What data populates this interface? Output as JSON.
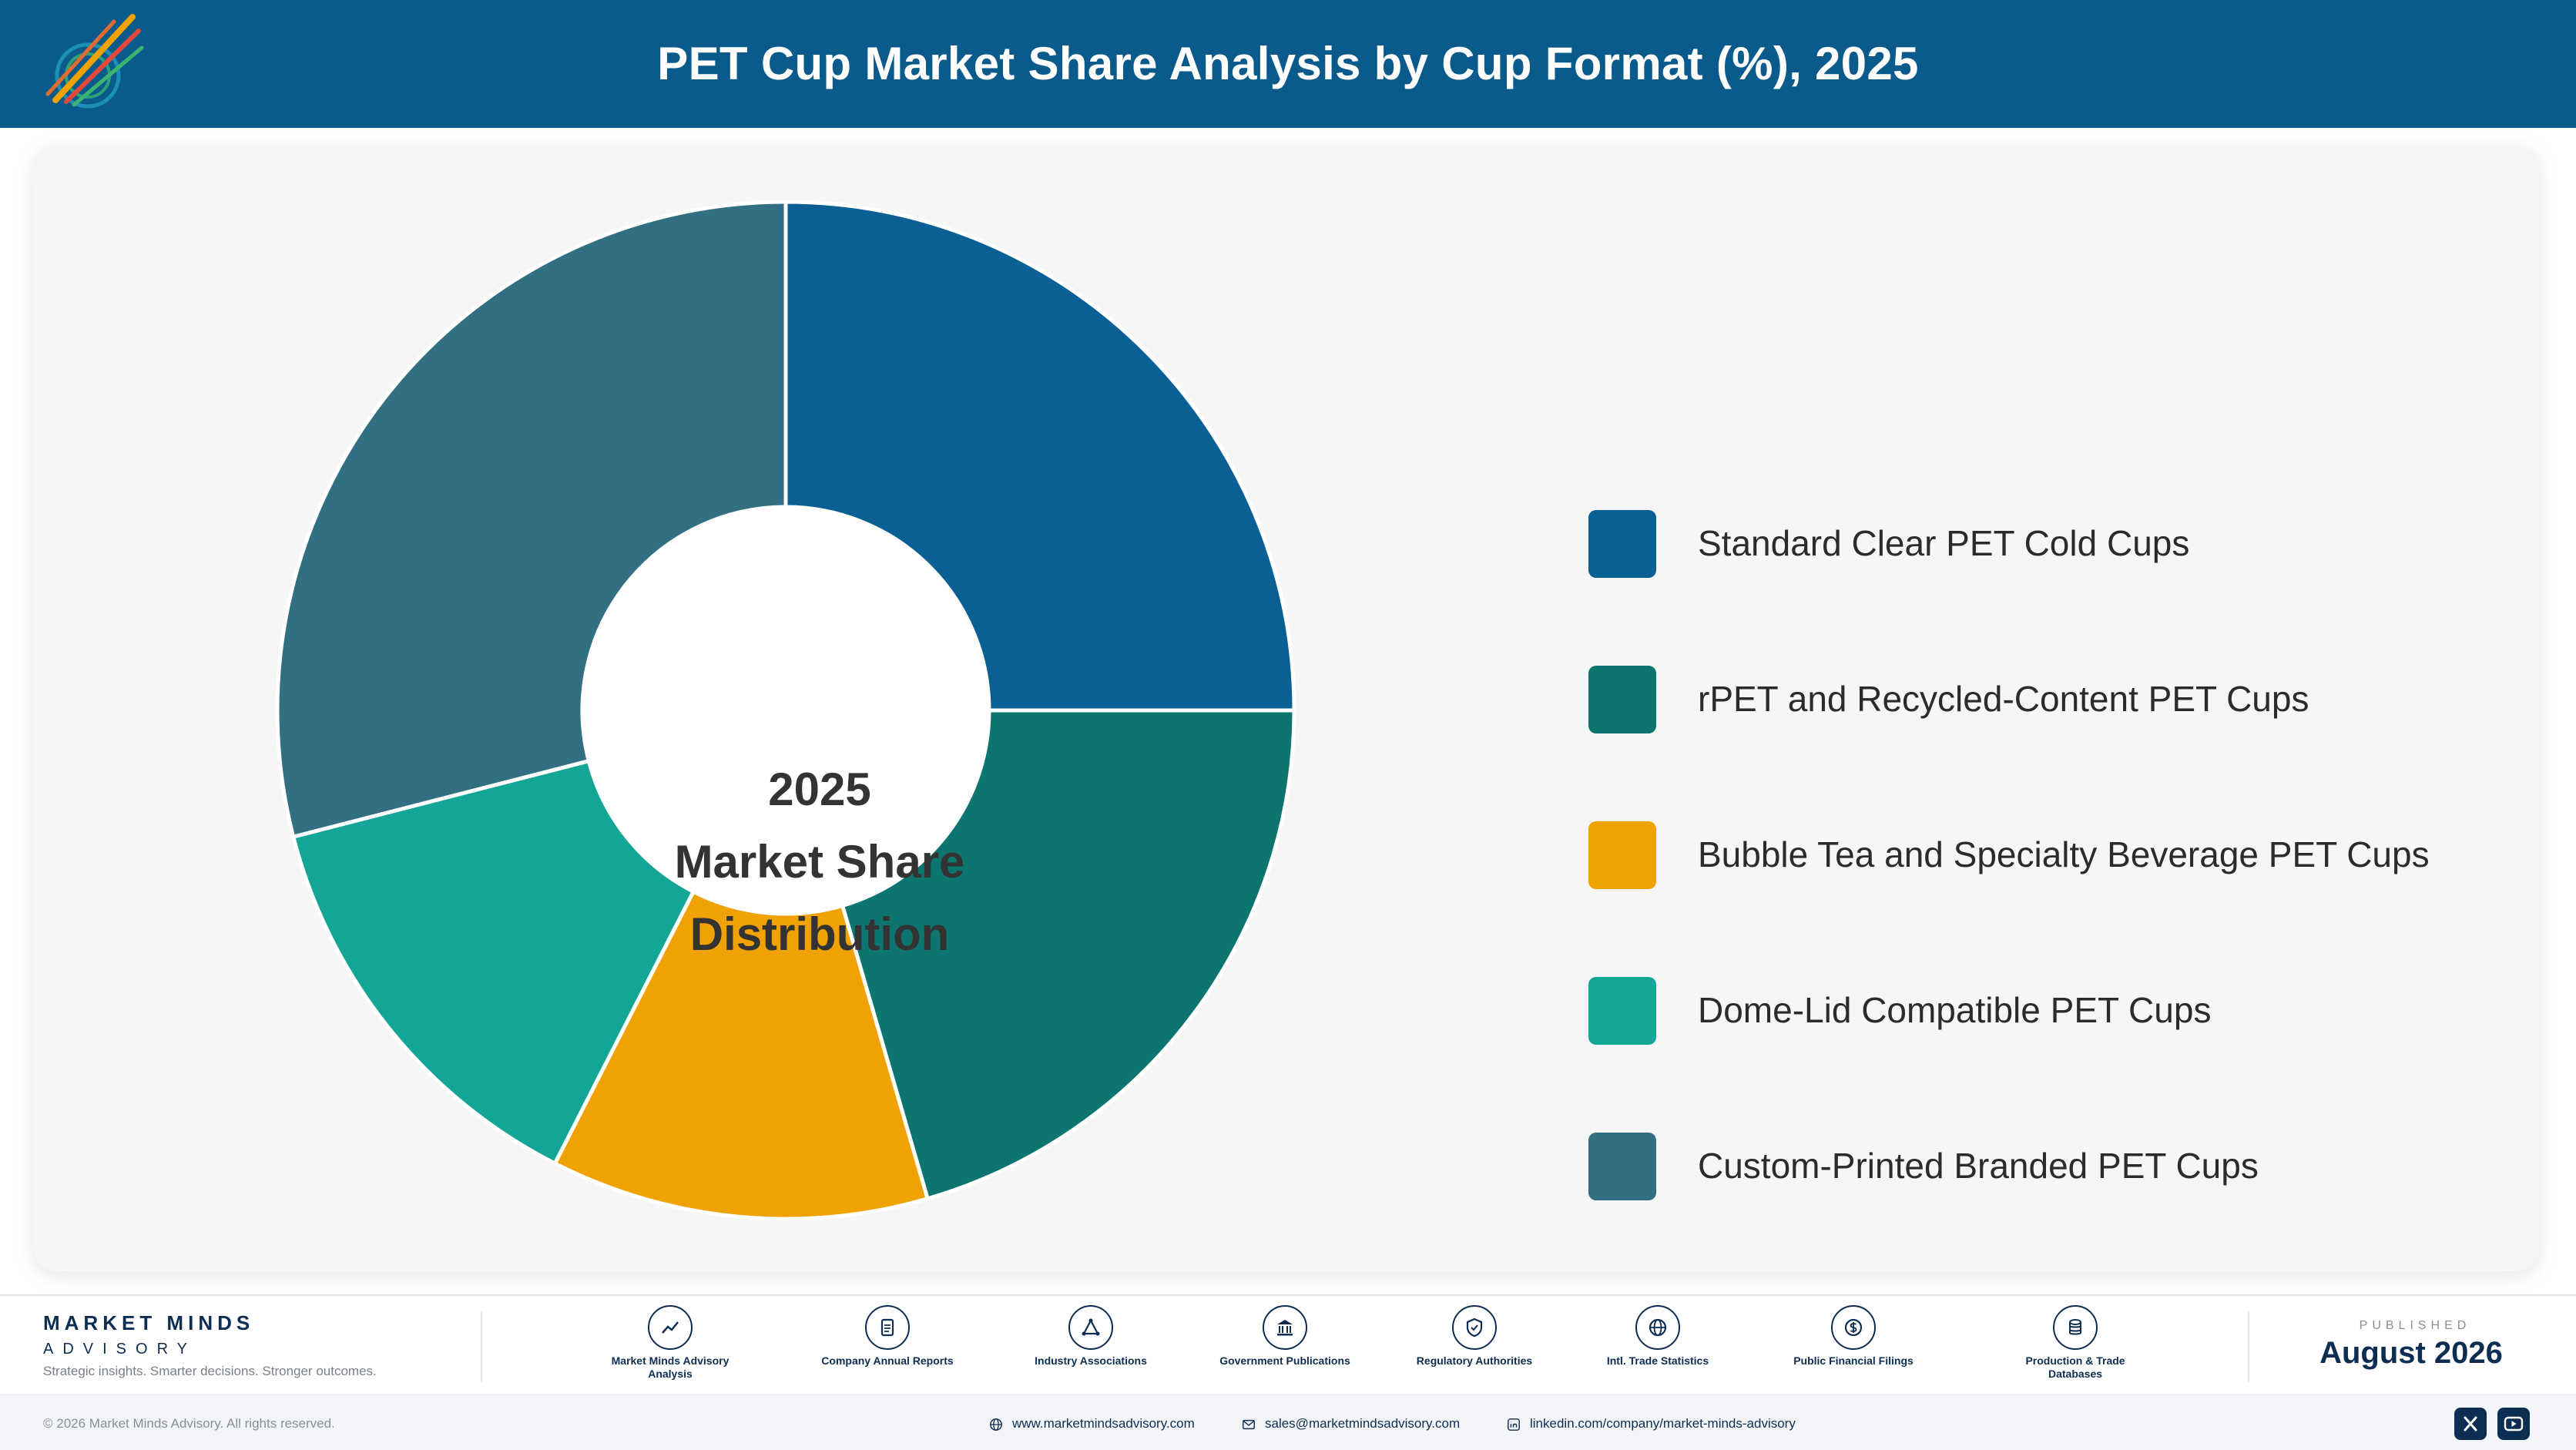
{
  "header": {
    "title": "PET Cup Market Share Analysis by Cup Format (%), 2025",
    "logo_icon": "market-minds-logo"
  },
  "chart_data": {
    "type": "pie",
    "variant": "donut",
    "center_label": [
      "2025",
      "Market Share",
      "Distribution"
    ],
    "categories": [
      "Standard Clear PET Cold Cups",
      "rPET and Recycled-Content PET Cups",
      "Bubble Tea and Specialty Beverage PET Cups",
      "Dome-Lid Compatible PET Cups",
      "Custom-Printed Branded PET Cups"
    ],
    "values": [
      25,
      20.5,
      12,
      13.5,
      29
    ],
    "colors": [
      "#0a5f94",
      "#0d7570",
      "#f0a202",
      "#13a595",
      "#326f82"
    ],
    "legend_position": "right",
    "start_angle": "12 o'clock",
    "direction": "clockwise"
  },
  "footer": {
    "brand_name": "MARKET MINDS",
    "brand_sub": "ADVISORY",
    "tagline": "Strategic insights. Smarter decisions. Stronger outcomes.",
    "sources": [
      {
        "label": "Market Minds Advisory Analysis",
        "icon": "chart-line-icon"
      },
      {
        "label": "Company Annual Reports",
        "icon": "document-icon"
      },
      {
        "label": "Industry Associations",
        "icon": "network-icon"
      },
      {
        "label": "Government Publications",
        "icon": "building-icon"
      },
      {
        "label": "Regulatory Authorities",
        "icon": "shield-icon"
      },
      {
        "label": "Intl. Trade Statistics",
        "icon": "globe-icon"
      },
      {
        "label": "Public Financial Filings",
        "icon": "dollar-icon"
      },
      {
        "label": "Production & Trade Databases",
        "icon": "database-icon"
      }
    ],
    "published_label": "PUBLISHED",
    "published_date": "August 2026",
    "copyright": "© 2026 Market Minds Advisory. All rights reserved.",
    "website": "www.marketmindsadvisory.com",
    "email": "sales@marketmindsadvisory.com",
    "linkedin": "linkedin.com/company/market-minds-advisory",
    "social": [
      "x-icon",
      "youtube-icon"
    ]
  }
}
